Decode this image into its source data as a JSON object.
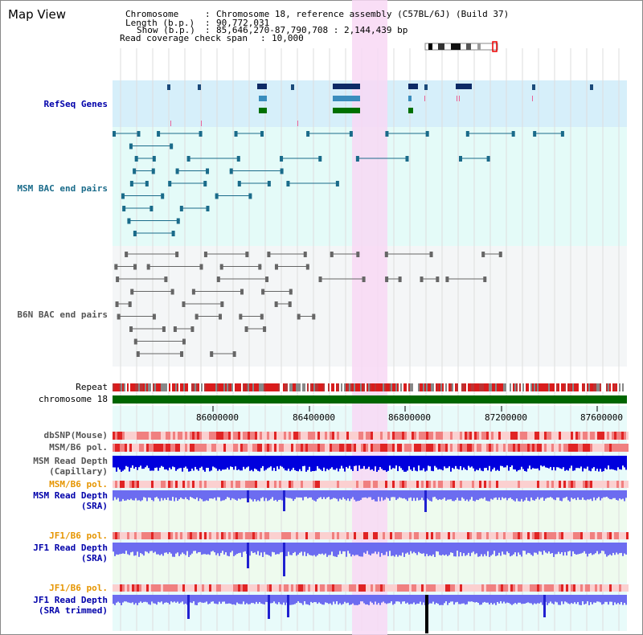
{
  "title": "Map View",
  "info": {
    "chromosome_key": "Chromosome",
    "chromosome_val": "Chromosome 18, reference assembly (C57BL/6J) (Build 37)",
    "length_key": "Length (b.p.)",
    "length_val": "90,772,031",
    "show_key": "Show (b.p.)",
    "show_val": "85,646,270-87,790,708 : 2,144,439 bp",
    "coverage_key": "Read coverage check span",
    "coverage_val": "10,000"
  },
  "tracks": {
    "refseq": "RefSeq Genes",
    "msm_bac": "MSM BAC end pairs",
    "b6n_bac": "B6N BAC end pairs",
    "repeat": "Repeat",
    "chromosome": "chromosome 18",
    "dbsnp": "dbSNP(Mouse)",
    "msm_b6_pol": "MSM/B6 pol.",
    "msm_depth_cap_1": "MSM Read Depth",
    "msm_depth_cap_2": "(Capillary)",
    "msm_b6_pol_2": "MSM/B6 pol.",
    "msm_depth_sra_1": "MSM Read Depth",
    "msm_depth_sra_2": "(SRA)",
    "jf1_b6_pol": "JF1/B6 pol.",
    "jf1_depth_sra_1": "JF1 Read Depth",
    "jf1_depth_sra_2": "(SRA)",
    "jf1_b6_pol_2": "JF1/B6 pol.",
    "jf1_depth_trim_1": "JF1 Read Depth",
    "jf1_depth_trim_2": "(SRA trimmed)"
  },
  "axis": {
    "ticks": [
      "86000000",
      "86400000",
      "86800000",
      "87200000",
      "87600000"
    ]
  },
  "colors": {
    "highlight": "#f8d8f4",
    "chromosome_bar": "#006600",
    "refseq_bg": "#d6effa",
    "bac_bg": "#e4fbf8",
    "depth_blue": "#0000dd",
    "depth_light": "#6c6cf0"
  }
}
